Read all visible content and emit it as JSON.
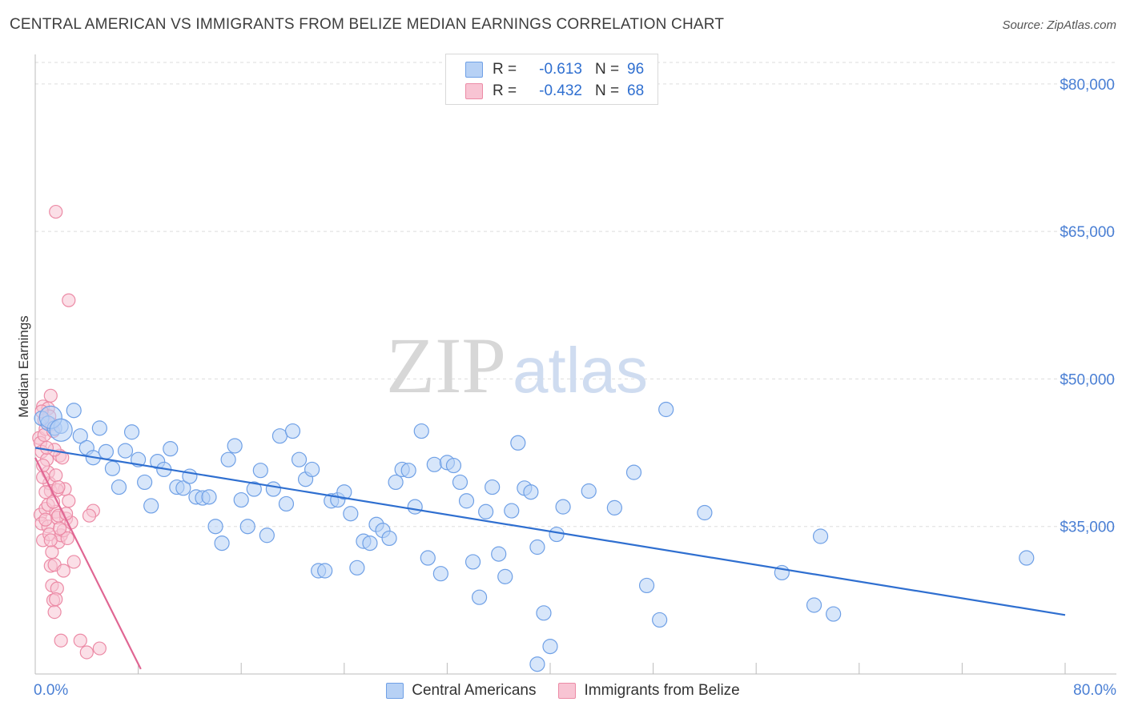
{
  "title": "CENTRAL AMERICAN VS IMMIGRANTS FROM BELIZE MEDIAN EARNINGS CORRELATION CHART",
  "source": "Source: ZipAtlas.com",
  "watermark": {
    "zip": "ZIP",
    "atlas": "atlas"
  },
  "legend": {
    "rows": [
      {
        "r_label": "R =",
        "r_value": "-0.613",
        "n_label": "N =",
        "n_value": "96",
        "fill": "#b7d1f5",
        "stroke": "#6fa0e6"
      },
      {
        "r_label": "R =",
        "r_value": "-0.432",
        "n_label": "N =",
        "n_value": "68",
        "fill": "#f8c4d3",
        "stroke": "#ec8ba6"
      }
    ]
  },
  "bottom_legend": [
    {
      "label": "Central Americans",
      "fill": "#b7d1f5",
      "stroke": "#6fa0e6"
    },
    {
      "label": "Immigrants from Belize",
      "fill": "#f8c4d3",
      "stroke": "#ec8ba6"
    }
  ],
  "chart_data": {
    "type": "scatter",
    "title": "CENTRAL AMERICAN VS IMMIGRANTS FROM BELIZE MEDIAN EARNINGS CORRELATION CHART",
    "xlabel": "",
    "ylabel": "Median Earnings",
    "x_tick_labels": [
      "0.0%",
      "80.0%"
    ],
    "y_tick_labels": [
      "$35,000",
      "$50,000",
      "$65,000",
      "$80,000"
    ],
    "y_ticks": [
      35000,
      50000,
      65000,
      80000
    ],
    "xlim": [
      0,
      80
    ],
    "ylim": [
      20000,
      83000
    ],
    "grid": true,
    "colors": {
      "blue": "#2f6fd0",
      "pink": "#e06693",
      "grid": "#dddddd",
      "axis": "#bbbbbb"
    },
    "series": [
      {
        "name": "Central Americans",
        "color": "#6fa0e6",
        "fill": "#b7d1f5",
        "trend": {
          "x0": 0.0,
          "y0": 43000,
          "x1": 80.0,
          "y1": 26000
        },
        "points": [
          [
            0.5,
            46000
          ],
          [
            1.0,
            45500
          ],
          [
            1.5,
            45000
          ],
          [
            2.0,
            45200
          ],
          [
            3.0,
            46800
          ],
          [
            3.5,
            44200
          ],
          [
            4.0,
            43000
          ],
          [
            4.5,
            42000
          ],
          [
            5.0,
            45000
          ],
          [
            5.5,
            42600
          ],
          [
            6.0,
            40900
          ],
          [
            6.5,
            39000
          ],
          [
            7.0,
            42700
          ],
          [
            7.5,
            44600
          ],
          [
            8.0,
            41800
          ],
          [
            8.5,
            39500
          ],
          [
            9.0,
            37100
          ],
          [
            9.5,
            41600
          ],
          [
            10.0,
            40800
          ],
          [
            10.5,
            42900
          ],
          [
            11.0,
            39000
          ],
          [
            11.5,
            38900
          ],
          [
            12.0,
            40100
          ],
          [
            12.5,
            38000
          ],
          [
            13.0,
            37900
          ],
          [
            13.5,
            38000
          ],
          [
            14.0,
            35000
          ],
          [
            14.5,
            33300
          ],
          [
            15.0,
            41800
          ],
          [
            15.5,
            43200
          ],
          [
            16.0,
            37700
          ],
          [
            16.5,
            35000
          ],
          [
            17.0,
            38800
          ],
          [
            17.5,
            40700
          ],
          [
            18.0,
            34100
          ],
          [
            18.5,
            38800
          ],
          [
            19.0,
            44200
          ],
          [
            19.5,
            37300
          ],
          [
            20.0,
            44700
          ],
          [
            20.5,
            41800
          ],
          [
            21.0,
            39800
          ],
          [
            21.5,
            40800
          ],
          [
            22.0,
            30500
          ],
          [
            22.5,
            30500
          ],
          [
            23.0,
            37600
          ],
          [
            23.5,
            37700
          ],
          [
            24.0,
            38500
          ],
          [
            24.5,
            36300
          ],
          [
            25.0,
            30800
          ],
          [
            25.5,
            33500
          ],
          [
            26.0,
            33300
          ],
          [
            26.5,
            35200
          ],
          [
            27.0,
            34600
          ],
          [
            27.5,
            33800
          ],
          [
            28.0,
            39500
          ],
          [
            28.5,
            40800
          ],
          [
            29.0,
            40700
          ],
          [
            29.5,
            37000
          ],
          [
            30.0,
            44700
          ],
          [
            30.5,
            31800
          ],
          [
            31.0,
            41300
          ],
          [
            31.5,
            30200
          ],
          [
            32.0,
            41500
          ],
          [
            32.5,
            41200
          ],
          [
            33.0,
            39500
          ],
          [
            33.5,
            37600
          ],
          [
            34.0,
            31400
          ],
          [
            34.5,
            27800
          ],
          [
            35.0,
            36500
          ],
          [
            35.5,
            39000
          ],
          [
            36.0,
            32200
          ],
          [
            36.5,
            29900
          ],
          [
            37.0,
            36600
          ],
          [
            37.5,
            43500
          ],
          [
            38.0,
            38900
          ],
          [
            38.5,
            38500
          ],
          [
            39.0,
            32900
          ],
          [
            39.5,
            26200
          ],
          [
            40.0,
            22800
          ],
          [
            40.5,
            34200
          ],
          [
            41.0,
            37000
          ],
          [
            43.0,
            38600
          ],
          [
            45.0,
            36900
          ],
          [
            46.5,
            40500
          ],
          [
            47.5,
            29000
          ],
          [
            48.5,
            25500
          ],
          [
            49.0,
            46900
          ],
          [
            52.0,
            36400
          ],
          [
            58.0,
            30300
          ],
          [
            60.5,
            27000
          ],
          [
            61.0,
            34000
          ],
          [
            62.0,
            26100
          ],
          [
            77.0,
            31800
          ],
          [
            39.0,
            21000
          ]
        ],
        "large_points": [
          [
            1.2,
            46100
          ],
          [
            2.0,
            44800
          ]
        ]
      },
      {
        "name": "Immigrants from Belize",
        "color": "#ec8ba6",
        "fill": "#f8c4d3",
        "trend": {
          "x0": 0.0,
          "y0": 42000,
          "x1": 8.2,
          "y1": 20500
        },
        "points": [
          [
            0.3,
            44000
          ],
          [
            0.4,
            43500
          ],
          [
            0.5,
            42600
          ],
          [
            0.6,
            47200
          ],
          [
            0.7,
            45800
          ],
          [
            0.8,
            44900
          ],
          [
            0.9,
            41800
          ],
          [
            1.0,
            40500
          ],
          [
            1.1,
            39400
          ],
          [
            1.2,
            38600
          ],
          [
            0.4,
            36200
          ],
          [
            0.5,
            35300
          ],
          [
            0.6,
            33600
          ],
          [
            0.8,
            36800
          ],
          [
            1.0,
            35000
          ],
          [
            1.1,
            34200
          ],
          [
            1.2,
            31000
          ],
          [
            1.3,
            29000
          ],
          [
            1.4,
            27500
          ],
          [
            1.5,
            26300
          ],
          [
            1.6,
            36500
          ],
          [
            1.7,
            35900
          ],
          [
            1.8,
            33400
          ],
          [
            2.0,
            34100
          ],
          [
            2.2,
            34600
          ],
          [
            2.4,
            35800
          ],
          [
            2.6,
            37600
          ],
          [
            2.8,
            35400
          ],
          [
            1.9,
            42200
          ],
          [
            2.1,
            42000
          ],
          [
            2.3,
            38800
          ],
          [
            2.5,
            33800
          ],
          [
            1.3,
            45400
          ],
          [
            1.5,
            42800
          ],
          [
            1.6,
            40200
          ],
          [
            1.7,
            38700
          ],
          [
            1.8,
            36100
          ],
          [
            1.9,
            34800
          ],
          [
            0.7,
            44300
          ],
          [
            0.9,
            43000
          ],
          [
            1.0,
            47000
          ],
          [
            1.1,
            46200
          ],
          [
            1.2,
            48300
          ],
          [
            1.4,
            44700
          ],
          [
            0.5,
            46700
          ],
          [
            0.6,
            40000
          ],
          [
            0.8,
            38500
          ],
          [
            1.0,
            37200
          ],
          [
            1.3,
            32400
          ],
          [
            1.5,
            31100
          ],
          [
            1.7,
            28700
          ],
          [
            1.6,
            27600
          ],
          [
            2.0,
            23400
          ],
          [
            3.0,
            31400
          ],
          [
            3.5,
            23400
          ],
          [
            4.0,
            22200
          ],
          [
            4.5,
            36600
          ],
          [
            5.0,
            22600
          ],
          [
            4.2,
            36100
          ],
          [
            1.6,
            67000
          ],
          [
            2.6,
            58000
          ],
          [
            1.4,
            37500
          ],
          [
            0.8,
            35700
          ],
          [
            1.2,
            33600
          ],
          [
            2.2,
            30500
          ],
          [
            0.6,
            41200
          ],
          [
            1.8,
            39000
          ],
          [
            2.4,
            36300
          ]
        ]
      }
    ]
  }
}
